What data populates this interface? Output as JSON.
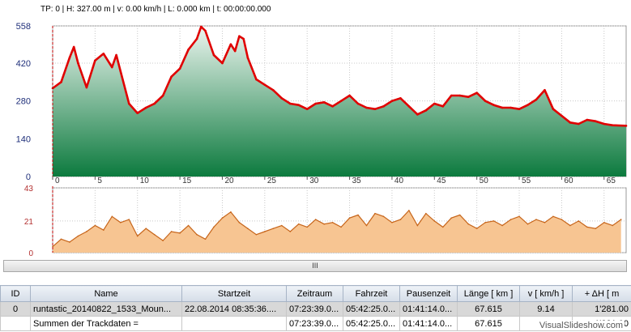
{
  "status": {
    "text": "TP: 0 | H: 327.00 m | v: 0.00 km/h | L: 0.000 km | t: 00:00:00.000"
  },
  "elevation_axis": {
    "y_ticks": [
      "558",
      "420",
      "280",
      "140",
      "0"
    ]
  },
  "x_ticks": [
    "0",
    "5",
    "10",
    "15",
    "20",
    "25",
    "30",
    "35",
    "40",
    "45",
    "50",
    "55",
    "60",
    "65"
  ],
  "speed_axis": {
    "y_ticks": [
      "43",
      "21",
      "0"
    ]
  },
  "splitter": {
    "grip": "III"
  },
  "colors": {
    "elevation_line": "#e00000",
    "elevation_fill_top": "#ecf5ef",
    "elevation_fill_bottom": "#0c7a3e",
    "speed_line": "#c7651a",
    "speed_fill": "#f7c592",
    "cursor": "#c00000"
  },
  "chart_data": [
    {
      "type": "area",
      "ylabel": "",
      "xlim": [
        0,
        67.6
      ],
      "ylim": [
        0,
        558
      ],
      "x": [
        0,
        1,
        2,
        2.5,
        3,
        4,
        5,
        6,
        7,
        7.5,
        8,
        9,
        10,
        11,
        12,
        13,
        14,
        15,
        16,
        17,
        17.5,
        18,
        19,
        20,
        21,
        21.5,
        22,
        22.5,
        23,
        24,
        25,
        26,
        27,
        28,
        29,
        30,
        31,
        32,
        33,
        34,
        35,
        36,
        37,
        38,
        39,
        40,
        41,
        42,
        43,
        44,
        45,
        46,
        47,
        48,
        49,
        50,
        51,
        52,
        53,
        54,
        55,
        56,
        57,
        58,
        59,
        60,
        61,
        62,
        63,
        64,
        65,
        66,
        67.6
      ],
      "y": [
        327,
        350,
        440,
        480,
        420,
        330,
        430,
        455,
        405,
        450,
        390,
        270,
        235,
        255,
        270,
        300,
        370,
        400,
        470,
        510,
        555,
        540,
        450,
        420,
        490,
        465,
        520,
        510,
        440,
        360,
        340,
        320,
        290,
        270,
        265,
        250,
        270,
        275,
        260,
        280,
        300,
        270,
        255,
        250,
        260,
        280,
        290,
        260,
        230,
        245,
        270,
        260,
        300,
        300,
        295,
        310,
        280,
        265,
        255,
        255,
        250,
        265,
        285,
        320,
        250,
        225,
        200,
        195,
        210,
        205,
        195,
        190,
        188
      ]
    },
    {
      "type": "area",
      "ylabel": "",
      "xlim": [
        0,
        67.6
      ],
      "ylim": [
        0,
        43
      ],
      "x": [
        0,
        1,
        2,
        3,
        4,
        5,
        6,
        7,
        8,
        9,
        10,
        11,
        12,
        13,
        14,
        15,
        16,
        17,
        18,
        19,
        20,
        21,
        22,
        23,
        24,
        25,
        26,
        27,
        28,
        29,
        30,
        31,
        32,
        33,
        34,
        35,
        36,
        37,
        38,
        39,
        40,
        41,
        42,
        43,
        44,
        45,
        46,
        47,
        48,
        49,
        50,
        51,
        52,
        53,
        54,
        55,
        56,
        57,
        58,
        59,
        60,
        61,
        62,
        63,
        64,
        65,
        66,
        67
      ],
      "y": [
        4,
        9,
        7,
        11,
        14,
        18,
        15,
        24,
        20,
        22,
        11,
        16,
        12,
        8,
        14,
        13,
        18,
        12,
        9,
        17,
        23,
        27,
        20,
        16,
        12,
        14,
        16,
        18,
        14,
        19,
        17,
        22,
        19,
        20,
        17,
        23,
        25,
        18,
        26,
        24,
        20,
        22,
        28,
        18,
        26,
        21,
        17,
        23,
        25,
        19,
        16,
        20,
        21,
        18,
        22,
        24,
        19,
        22,
        20,
        24,
        22,
        18,
        21,
        17,
        16,
        20,
        18,
        22
      ]
    }
  ],
  "table": {
    "columns": [
      "ID",
      "Name",
      "Startzeit",
      "Zeitraum",
      "Fahrzeit",
      "Pausenzeit",
      "Länge  [ km ]",
      "v  [ km/h ]",
      "+ ΔH  [ m"
    ],
    "rows": [
      [
        "0",
        "runtastic_20140822_1533_Moun...",
        "22.08.2014 08:35:36....",
        "07:23:39.0...",
        "05:42:25.0...",
        "01:41:14.0...",
        "67.615",
        "9.14",
        "1'281.00"
      ],
      [
        "",
        "Summen der Trackdaten =",
        "",
        "07:23:39.0...",
        "05:42:25.0...",
        "01:41:14.0...",
        "67.615",
        "",
        "1'281.00"
      ]
    ]
  },
  "watermark": "VisualSlideshow.com"
}
